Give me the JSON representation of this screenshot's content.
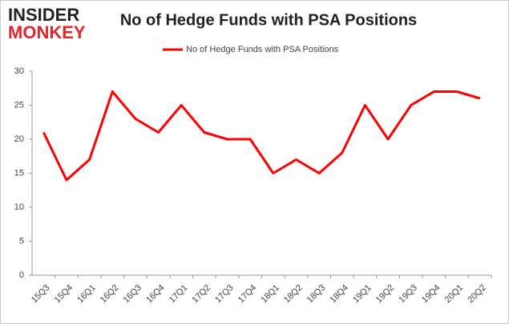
{
  "logo": [
    "INSIDER",
    "MONKEY"
  ],
  "chart_data": {
    "type": "line",
    "title": "No of Hedge Funds with PSA Positions",
    "categories": [
      "15Q3",
      "15Q4",
      "16Q1",
      "16Q2",
      "16Q3",
      "16Q4",
      "17Q1",
      "17Q2",
      "17Q3",
      "17Q4",
      "18Q1",
      "18Q2",
      "18Q3",
      "18Q4",
      "19Q1",
      "19Q2",
      "19Q3",
      "19Q4",
      "20Q1",
      "20Q2"
    ],
    "series": [
      {
        "name": "No of Hedge Funds with PSA Positions",
        "color": "#ff0000",
        "values": [
          21,
          14,
          17,
          27,
          23,
          21,
          25,
          21,
          20,
          20,
          15,
          17,
          15,
          18,
          25,
          20,
          25,
          27,
          27,
          26
        ]
      }
    ],
    "ylim": [
      0,
      30
    ],
    "yticks": [
      0,
      5,
      10,
      15,
      20,
      25,
      30
    ],
    "grid": false,
    "legend": "top"
  }
}
